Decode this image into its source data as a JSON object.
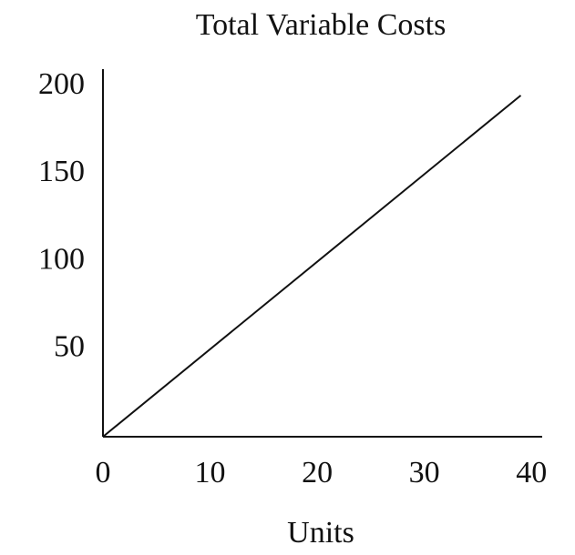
{
  "chart_data": {
    "type": "line",
    "title": "Total Variable Costs",
    "x_label": "Units",
    "x": [
      0,
      39
    ],
    "series": [
      {
        "name": null,
        "color": "#111111",
        "values": [
          0,
          195
        ]
      }
    ],
    "xlim": [
      0,
      41
    ],
    "xticks": [
      0,
      10,
      20,
      30,
      40
    ],
    "ylim": [
      0,
      210
    ],
    "yticks": [
      50,
      100,
      150,
      200
    ],
    "grid": false
  }
}
